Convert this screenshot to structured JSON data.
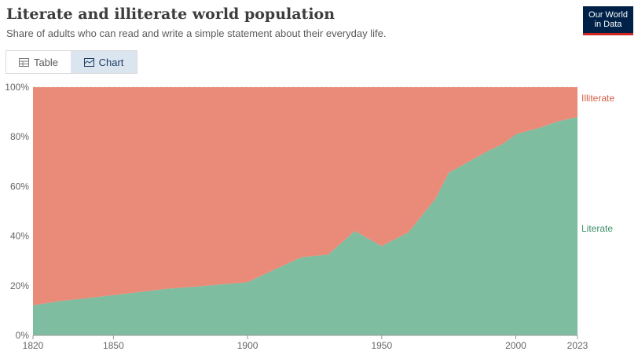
{
  "header": {
    "title": "Literate and illiterate world population",
    "subtitle": "Share of adults who can read and write a simple statement about their everyday life."
  },
  "logo": {
    "line1": "Our World",
    "line2": "in Data"
  },
  "tabs": [
    {
      "label": "Table",
      "icon": "table-icon",
      "selected": false
    },
    {
      "label": "Chart",
      "icon": "chart-icon",
      "selected": true
    }
  ],
  "chart_data": {
    "type": "area",
    "stacked": true,
    "x": [
      1820,
      1830,
      1840,
      1850,
      1860,
      1870,
      1880,
      1890,
      1900,
      1910,
      1920,
      1930,
      1940,
      1950,
      1960,
      1970,
      1975,
      1980,
      1985,
      1990,
      1995,
      2000,
      2005,
      2010,
      2015,
      2020,
      2023
    ],
    "series": [
      {
        "name": "Literate",
        "color": "#7ebd9f",
        "values": [
          12.1,
          13.8,
          15.0,
          16.2,
          17.5,
          18.8,
          19.6,
          20.5,
          21.4,
          26.5,
          31.5,
          32.5,
          42.0,
          36.0,
          41.5,
          55.0,
          65.5,
          68.5,
          71.5,
          74.5,
          77.0,
          81.0,
          82.5,
          84.0,
          86.0,
          87.3,
          88.0
        ]
      },
      {
        "name": "Illiterate",
        "color": "#ea8a78",
        "values": [
          87.9,
          86.2,
          85.0,
          83.8,
          82.5,
          81.2,
          80.4,
          79.5,
          78.6,
          73.5,
          68.5,
          67.5,
          58.0,
          64.0,
          58.5,
          45.0,
          34.5,
          31.5,
          28.5,
          25.5,
          23.0,
          19.0,
          17.5,
          16.0,
          14.0,
          12.7,
          12.0
        ]
      }
    ],
    "ylim": [
      0,
      100
    ],
    "xlim": [
      1820,
      2023
    ],
    "yticks": [
      0,
      20,
      40,
      60,
      80,
      100
    ],
    "ytick_labels": [
      "0%",
      "20%",
      "40%",
      "60%",
      "80%",
      "100%"
    ],
    "xticks": [
      1820,
      1850,
      1900,
      1950,
      2000,
      2023
    ],
    "xtick_labels": [
      "1820",
      "1850",
      "1900",
      "1950",
      "2000",
      "2023"
    ],
    "legend": "inline-right",
    "grid": "horizontal-dashed"
  }
}
